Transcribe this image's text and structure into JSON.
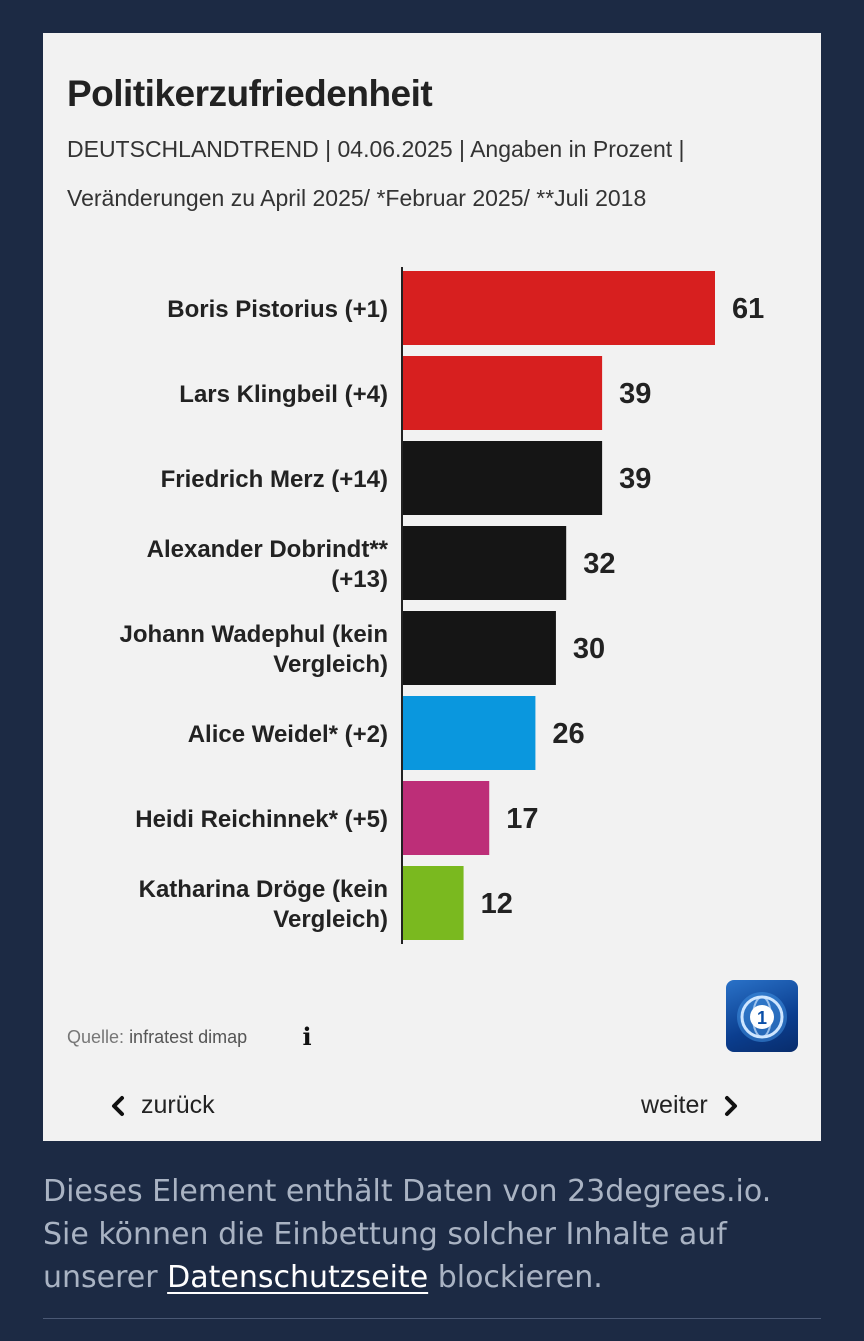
{
  "title": "Politikerzufriedenheit",
  "subtitle_line1": "DEUTSCHLANDTREND | 04.06.2025 | Angaben in Prozent |",
  "subtitle_line2": "Veränderungen zu April 2025/ *Februar 2025/ **Juli 2018",
  "source_label": "Quelle:",
  "source_value": "infratest dimap",
  "info_icon": "info-icon",
  "logo": "tagesschau-1-logo",
  "nav": {
    "back_label": "zurück",
    "next_label": "weiter"
  },
  "notice": {
    "before": "Dieses Element enthält Daten von 23degrees.io. Sie können die Einbettung solcher Inhalte auf unserer ",
    "link": "Datenschutzseite",
    "after": " blockieren."
  },
  "chart_data": {
    "type": "bar",
    "orientation": "horizontal",
    "title": "Politikerzufriedenheit",
    "xlim": [
      0,
      61
    ],
    "grid": false,
    "categories": [
      [
        "Boris Pistorius (+1)"
      ],
      [
        "Lars Klingbeil (+4)"
      ],
      [
        "Friedrich Merz (+14)"
      ],
      [
        "Alexander Dobrindt**",
        "(+13)"
      ],
      [
        "Johann Wadephul (kein",
        "Vergleich)"
      ],
      [
        "Alice Weidel* (+2)"
      ],
      [
        "Heidi Reichinnek* (+5)"
      ],
      [
        "Katharina Dröge (kein",
        "Vergleich)"
      ]
    ],
    "values": [
      61,
      39,
      39,
      32,
      30,
      26,
      17,
      12
    ],
    "colors": [
      "#d71f1f",
      "#d71f1f",
      "#151515",
      "#151515",
      "#151515",
      "#0a97de",
      "#bd2e78",
      "#7ab91f"
    ]
  }
}
